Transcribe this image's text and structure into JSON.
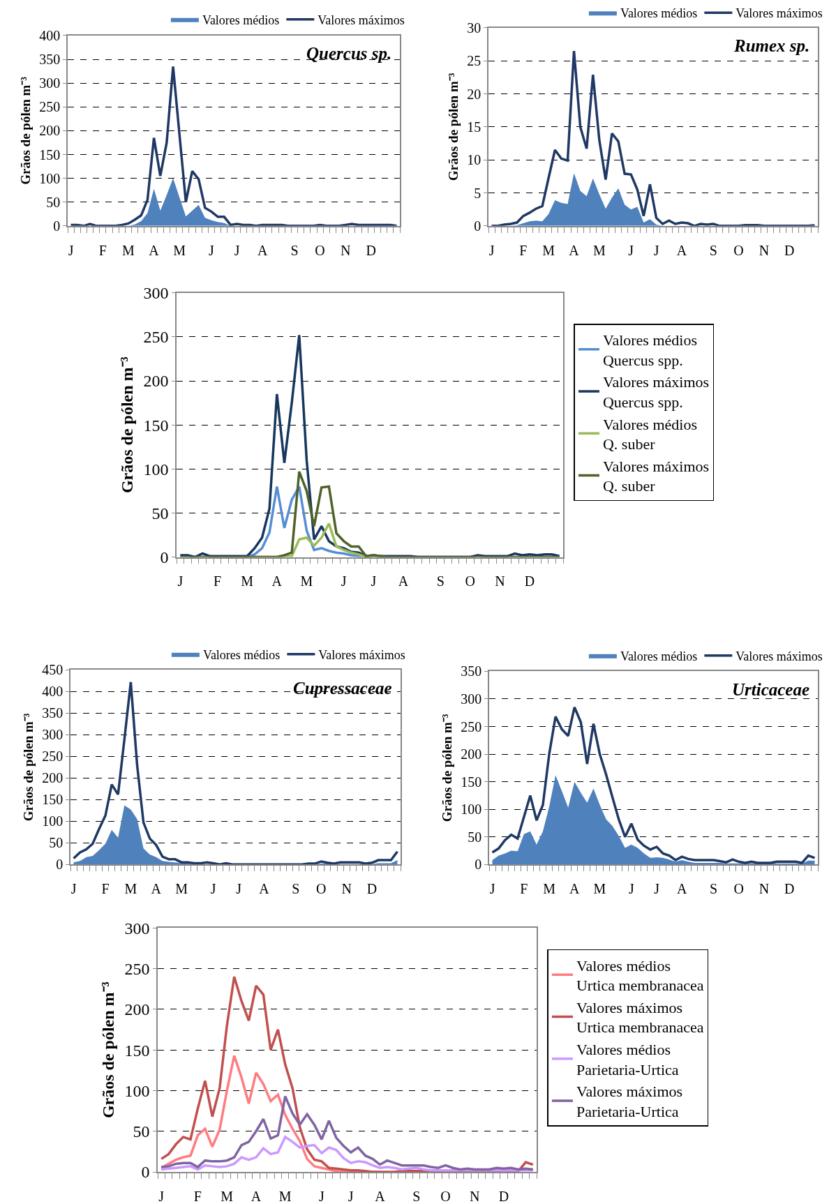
{
  "chart_data": [
    {
      "type": "line",
      "title": "Quercus sp.",
      "ylabel": "Grãos de pólen m⁻³",
      "legend": "top right",
      "grid": "y",
      "ylim": [
        0,
        400
      ],
      "yticks": [
        0,
        50,
        100,
        150,
        200,
        250,
        300,
        350,
        400
      ],
      "categories": [
        "J",
        null,
        null,
        null,
        null,
        "F",
        null,
        null,
        null,
        "M",
        null,
        null,
        null,
        "A",
        null,
        null,
        null,
        "M",
        null,
        null,
        null,
        null,
        "J",
        null,
        null,
        null,
        "J",
        null,
        null,
        null,
        "A",
        null,
        null,
        null,
        null,
        "S",
        null,
        null,
        null,
        "O",
        null,
        null,
        null,
        "N",
        null,
        null,
        null,
        "D",
        null,
        null,
        null,
        null
      ],
      "series": [
        {
          "name": "Valores médios",
          "type": "area",
          "color": "#4f81bd",
          "values": [
            0,
            0,
            0,
            0,
            0,
            0,
            0,
            0,
            0,
            0,
            3,
            10,
            27,
            78,
            32,
            65,
            100,
            60,
            20,
            32,
            44,
            17,
            12,
            8,
            6,
            0,
            0,
            0,
            0,
            0,
            0,
            0,
            0,
            0,
            0,
            0,
            0,
            0,
            0,
            0,
            0,
            0,
            0,
            0,
            0,
            0,
            0,
            0,
            0,
            0,
            0,
            0
          ]
        },
        {
          "name": "Valores máximos",
          "type": "line",
          "color": "#1f3864",
          "values": [
            2,
            2,
            0,
            4,
            0,
            0,
            0,
            0,
            2,
            5,
            13,
            22,
            55,
            185,
            105,
            175,
            335,
            192,
            50,
            115,
            98,
            38,
            30,
            19,
            19,
            2,
            4,
            2,
            2,
            0,
            2,
            2,
            2,
            2,
            0,
            0,
            0,
            0,
            0,
            2,
            0,
            0,
            0,
            2,
            4,
            2,
            2,
            2,
            2,
            2,
            2,
            0
          ]
        }
      ]
    },
    {
      "type": "line",
      "title": "Rumex sp.",
      "ylabel": "Grãos de pólen m⁻³",
      "legend": "top right",
      "grid": "y",
      "ylim": [
        0,
        30
      ],
      "yticks": [
        0,
        5,
        10,
        15,
        20,
        25,
        30
      ],
      "categories": [
        "J",
        null,
        null,
        null,
        null,
        "F",
        null,
        null,
        null,
        "M",
        null,
        null,
        null,
        "A",
        null,
        null,
        null,
        "M",
        null,
        null,
        null,
        null,
        "J",
        null,
        null,
        null,
        "J",
        null,
        null,
        null,
        "A",
        null,
        null,
        null,
        null,
        "S",
        null,
        null,
        null,
        "O",
        null,
        null,
        null,
        "N",
        null,
        null,
        null,
        "D",
        null,
        null,
        null,
        null
      ],
      "series": [
        {
          "name": "Valores médios",
          "type": "area",
          "color": "#4f81bd",
          "values": [
            0,
            0,
            0,
            0,
            0.1,
            0.4,
            0.7,
            0.8,
            0.7,
            1.8,
            3.9,
            3.5,
            3.3,
            8,
            5.3,
            4.5,
            7.2,
            4.8,
            2.6,
            4.3,
            5.7,
            3.2,
            2.5,
            2.9,
            0.5,
            1,
            0.2,
            0,
            0,
            0,
            0,
            0,
            0,
            0,
            0,
            0,
            0,
            0,
            0,
            0,
            0,
            0,
            0,
            0,
            0,
            0,
            0,
            0,
            0,
            0,
            0,
            0
          ]
        },
        {
          "name": "Valores máximos",
          "type": "line",
          "color": "#1f3864",
          "values": [
            0,
            0,
            0.2,
            0.3,
            0.5,
            1.5,
            2,
            2.6,
            3,
            7.3,
            11.5,
            10.2,
            9.9,
            26.5,
            15,
            11.7,
            22.9,
            13,
            7,
            14,
            12.8,
            7.9,
            7.8,
            5.5,
            1.5,
            6.3,
            1.2,
            0.3,
            0.8,
            0.3,
            0.5,
            0.4,
            0,
            0.3,
            0.2,
            0.3,
            0,
            0,
            0,
            0,
            0.1,
            0.1,
            0.1,
            0,
            0,
            0,
            0,
            0,
            0,
            0,
            0,
            0.1
          ]
        }
      ]
    },
    {
      "type": "line",
      "ylabel": "Grãos de pólen m⁻³",
      "legend": "right",
      "grid": "y",
      "ylim": [
        0,
        300
      ],
      "yticks": [
        0,
        50,
        100,
        150,
        200,
        250,
        300
      ],
      "categories": [
        "J",
        null,
        null,
        null,
        null,
        "F",
        null,
        null,
        null,
        "M",
        null,
        null,
        null,
        "A",
        null,
        null,
        null,
        "M",
        null,
        null,
        null,
        null,
        "J",
        null,
        null,
        null,
        "J",
        null,
        null,
        null,
        "A",
        null,
        null,
        null,
        null,
        "S",
        null,
        null,
        null,
        "O",
        null,
        null,
        null,
        "N",
        null,
        null,
        null,
        "D",
        null,
        null,
        null,
        null
      ],
      "series": [
        {
          "name": "Valores médios Quercus spp.",
          "color": "#558ed5",
          "values": [
            null,
            null,
            null,
            null,
            null,
            null,
            null,
            null,
            null,
            0,
            3,
            10,
            28,
            80,
            33,
            65,
            80,
            30,
            8,
            10,
            7,
            5,
            4,
            2,
            1,
            0,
            null,
            null,
            null,
            null,
            null,
            null,
            null,
            null,
            null,
            null,
            null,
            null,
            null,
            null,
            null,
            null,
            null,
            null,
            null,
            null,
            null,
            null,
            null,
            null,
            null,
            null
          ]
        },
        {
          "name": "Valores máximos Quercus spp.",
          "color": "#17375e",
          "values": [
            2,
            2,
            0,
            4,
            1,
            1,
            1,
            1,
            1,
            1,
            10,
            22,
            55,
            185,
            107,
            175,
            252,
            110,
            20,
            35,
            18,
            12,
            10,
            6,
            5,
            1,
            2,
            1,
            1,
            1,
            1,
            1,
            0,
            0,
            0,
            0,
            0,
            0,
            0,
            0,
            2,
            1,
            1,
            1,
            1,
            4,
            2,
            3,
            2,
            3,
            3,
            1
          ]
        },
        {
          "name": "Valores médios Q. suber",
          "color": "#9bbb59",
          "values": [
            null,
            null,
            null,
            null,
            null,
            null,
            null,
            null,
            null,
            0,
            0,
            0,
            0,
            0,
            0,
            1,
            20,
            22,
            13,
            22,
            38,
            12,
            8,
            5,
            3,
            0,
            0,
            0,
            null,
            null,
            null,
            null,
            null,
            null,
            null,
            null,
            null,
            null,
            null,
            null,
            null,
            null,
            null,
            null,
            null,
            null,
            null,
            null,
            null,
            null,
            null,
            null
          ]
        },
        {
          "name": "Valores máximos Q. suber",
          "color": "#4f6228",
          "values": [
            0,
            0,
            0,
            0,
            0,
            0,
            0,
            0,
            0,
            0,
            0,
            0,
            0,
            0,
            2,
            5,
            97,
            75,
            35,
            79,
            80,
            27,
            18,
            12,
            12,
            1,
            2,
            1,
            0,
            0,
            0,
            0,
            0,
            0,
            0,
            0,
            0,
            0,
            0,
            0,
            0,
            0,
            0,
            0,
            0,
            0,
            0,
            0,
            0,
            0,
            0,
            0
          ]
        }
      ]
    },
    {
      "type": "line",
      "title": "Cupressaceae",
      "ylabel": "Grãos de pólen m⁻³",
      "legend": "top right",
      "grid": "y",
      "ylim": [
        0,
        450
      ],
      "yticks": [
        0,
        50,
        100,
        150,
        200,
        250,
        300,
        350,
        400,
        450
      ],
      "categories": [
        "J",
        null,
        null,
        null,
        null,
        "F",
        null,
        null,
        null,
        "M",
        null,
        null,
        null,
        "A",
        null,
        null,
        null,
        "M",
        null,
        null,
        null,
        null,
        "J",
        null,
        null,
        null,
        "J",
        null,
        null,
        null,
        "A",
        null,
        null,
        null,
        null,
        "S",
        null,
        null,
        null,
        "O",
        null,
        null,
        null,
        "N",
        null,
        null,
        null,
        "D",
        null,
        null,
        null,
        null
      ],
      "series": [
        {
          "name": "Valores médios",
          "type": "area",
          "color": "#4f81bd",
          "values": [
            5,
            8,
            17,
            20,
            33,
            48,
            80,
            62,
            137,
            127,
            105,
            37,
            23,
            17,
            8,
            6,
            5,
            3,
            2,
            1,
            1,
            1,
            1,
            0,
            0,
            0,
            0,
            0,
            0,
            0,
            0,
            0,
            0,
            0,
            0,
            0,
            0,
            1,
            1,
            2,
            2,
            1,
            1,
            1,
            1,
            1,
            1,
            1,
            3,
            3,
            3,
            10
          ]
        },
        {
          "name": "Valores máximos",
          "type": "line",
          "color": "#1f3864",
          "values": [
            14,
            28,
            35,
            48,
            82,
            113,
            185,
            162,
            290,
            422,
            230,
            97,
            60,
            45,
            18,
            12,
            12,
            5,
            5,
            3,
            3,
            5,
            3,
            0,
            3,
            0,
            0,
            0,
            0,
            0,
            0,
            0,
            0,
            0,
            0,
            0,
            0,
            2,
            2,
            7,
            4,
            2,
            5,
            5,
            5,
            5,
            2,
            4,
            10,
            10,
            10,
            30
          ]
        }
      ]
    },
    {
      "type": "line",
      "title": "Urticaceae",
      "ylabel": "Grãos de pólen m⁻³",
      "legend": "top right",
      "grid": "y",
      "ylim": [
        0,
        350
      ],
      "yticks": [
        0,
        50,
        100,
        150,
        200,
        250,
        300,
        350
      ],
      "categories": [
        "J",
        null,
        null,
        null,
        null,
        "F",
        null,
        null,
        null,
        "M",
        null,
        null,
        null,
        "A",
        null,
        null,
        null,
        "M",
        null,
        null,
        null,
        null,
        "J",
        null,
        null,
        null,
        "J",
        null,
        null,
        null,
        "A",
        null,
        null,
        null,
        null,
        "S",
        null,
        null,
        null,
        "O",
        null,
        null,
        null,
        "N",
        null,
        null,
        null,
        "D",
        null,
        null,
        null,
        null
      ],
      "series": [
        {
          "name": "Valores médios",
          "type": "area",
          "color": "#4f81bd",
          "values": [
            8,
            16,
            20,
            25,
            24,
            55,
            60,
            36,
            60,
            105,
            162,
            133,
            103,
            150,
            130,
            112,
            138,
            108,
            82,
            70,
            52,
            30,
            36,
            30,
            20,
            12,
            13,
            12,
            9,
            5,
            8,
            5,
            3,
            3,
            3,
            3,
            3,
            2,
            2,
            2,
            2,
            2,
            2,
            2,
            2,
            2,
            2,
            2,
            2,
            2,
            7,
            7
          ]
        },
        {
          "name": "Valores máximos",
          "type": "line",
          "color": "#1f3864",
          "values": [
            22,
            29,
            44,
            54,
            47,
            86,
            125,
            80,
            108,
            200,
            268,
            245,
            233,
            285,
            258,
            182,
            255,
            200,
            163,
            122,
            82,
            50,
            74,
            45,
            34,
            27,
            32,
            20,
            16,
            8,
            14,
            10,
            8,
            8,
            8,
            8,
            6,
            4,
            9,
            5,
            3,
            5,
            3,
            3,
            3,
            5,
            5,
            5,
            5,
            3,
            16,
            12
          ]
        }
      ]
    },
    {
      "type": "line",
      "ylabel": "Grãos de pólen m⁻³",
      "legend": "right",
      "grid": "y",
      "ylim": [
        0,
        300
      ],
      "yticks": [
        0,
        50,
        100,
        150,
        200,
        250,
        300
      ],
      "categories": [
        "J",
        null,
        null,
        null,
        null,
        "F",
        null,
        null,
        null,
        "M",
        null,
        null,
        null,
        "A",
        null,
        null,
        null,
        "M",
        null,
        null,
        null,
        null,
        "J",
        null,
        null,
        null,
        "J",
        null,
        null,
        null,
        "A",
        null,
        null,
        null,
        null,
        "S",
        null,
        null,
        null,
        "O",
        null,
        null,
        null,
        "N",
        null,
        null,
        null,
        "D",
        null,
        null,
        null,
        null
      ],
      "series": [
        {
          "name": "Valores médios Urtica membranacea",
          "color": "#ff7c80",
          "values": [
            5,
            10,
            15,
            18,
            20,
            45,
            53,
            31,
            52,
            100,
            143,
            116,
            84,
            122,
            108,
            87,
            95,
            70,
            53,
            38,
            16,
            7,
            5,
            3,
            1,
            0,
            0,
            0,
            0,
            0,
            0,
            null,
            null,
            null,
            null,
            null,
            null,
            null,
            null,
            null,
            null,
            null,
            null,
            null,
            null,
            null,
            null,
            null,
            null,
            null,
            null,
            null
          ]
        },
        {
          "name": "Valores máximos Urtica membranacea",
          "color": "#c0504d",
          "values": [
            16,
            22,
            34,
            43,
            40,
            78,
            112,
            68,
            103,
            180,
            240,
            210,
            186,
            229,
            218,
            150,
            175,
            132,
            103,
            55,
            28,
            15,
            13,
            5,
            4,
            3,
            2,
            2,
            1,
            0,
            0,
            0,
            0,
            1,
            1,
            1,
            1,
            0,
            0,
            0,
            0,
            0,
            0,
            0,
            0,
            0,
            0,
            0,
            0,
            1,
            12,
            9
          ]
        },
        {
          "name": "Valores médios Parietaria-Urtica",
          "color": "#cc99ff",
          "values": [
            3,
            4,
            5,
            6,
            7,
            3,
            8,
            7,
            6,
            7,
            10,
            18,
            15,
            18,
            29,
            22,
            24,
            43,
            37,
            30,
            32,
            33,
            23,
            30,
            27,
            17,
            11,
            13,
            12,
            8,
            5,
            6,
            5,
            3,
            4,
            5,
            3,
            2,
            2,
            2,
            2,
            2,
            2,
            2,
            2,
            2,
            2,
            2,
            2,
            2,
            2,
            2
          ]
        },
        {
          "name": "Valores máximos Parietaria-Urtica",
          "color": "#8064a2",
          "values": [
            6,
            7,
            10,
            11,
            11,
            6,
            14,
            13,
            13,
            14,
            18,
            33,
            37,
            50,
            65,
            41,
            45,
            93,
            72,
            58,
            71,
            58,
            40,
            63,
            42,
            32,
            24,
            30,
            20,
            16,
            9,
            14,
            11,
            8,
            8,
            8,
            8,
            6,
            5,
            8,
            5,
            3,
            4,
            3,
            3,
            3,
            5,
            4,
            5,
            3,
            4,
            3
          ]
        }
      ]
    }
  ]
}
